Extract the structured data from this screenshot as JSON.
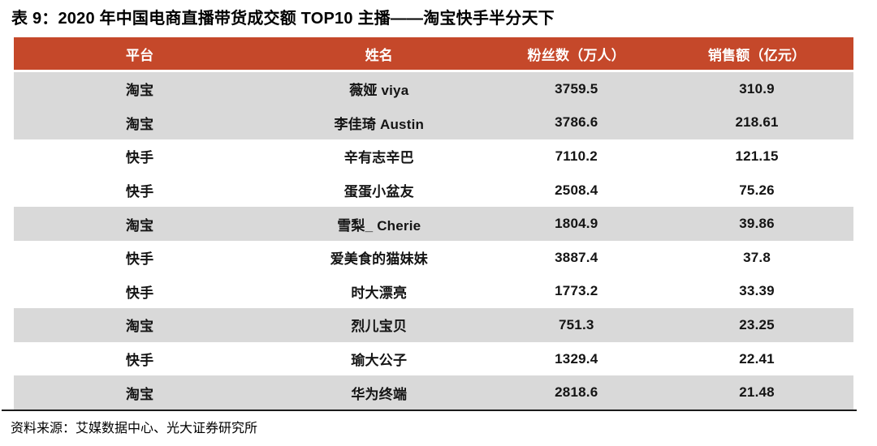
{
  "page": {
    "title": "表 9：2020 年中国电商直播带货成交额 TOP10 主播——淘宝快手半分天下",
    "source": "资料来源：艾媒数据中心、光大证券研究所"
  },
  "colors": {
    "header_bg": "#C5482A",
    "header_text": "#FFFFFF",
    "row_shaded_bg": "#D9D9D9",
    "body_text": "#141414",
    "bottom_rule": "#1B1B1B"
  },
  "table": {
    "headers": [
      "平台",
      "姓名",
      "粉丝数（万人）",
      "销售额（亿元）"
    ],
    "rows": [
      {
        "platform": "淘宝",
        "name": "薇娅 viya",
        "fans": "3759.5",
        "sales": "310.9",
        "shade": "gray"
      },
      {
        "platform": "淘宝",
        "name": "李佳琦 Austin",
        "fans": "3786.6",
        "sales": "218.61",
        "shade": "gray"
      },
      {
        "platform": "快手",
        "name": "辛有志辛巴",
        "fans": "7110.2",
        "sales": "121.15",
        "shade": "white"
      },
      {
        "platform": "快手",
        "name": "蛋蛋小盆友",
        "fans": "2508.4",
        "sales": "75.26",
        "shade": "white"
      },
      {
        "platform": "淘宝",
        "name": "雪梨_ Cherie",
        "fans": "1804.9",
        "sales": "39.86",
        "shade": "gray"
      },
      {
        "platform": "快手",
        "name": "爱美食的猫妹妹",
        "fans": "3887.4",
        "sales": "37.8",
        "shade": "white"
      },
      {
        "platform": "快手",
        "name": "时大漂亮",
        "fans": "1773.2",
        "sales": "33.39",
        "shade": "white"
      },
      {
        "platform": "淘宝",
        "name": "烈儿宝贝",
        "fans": "751.3",
        "sales": "23.25",
        "shade": "gray"
      },
      {
        "platform": "快手",
        "name": "瑜大公子",
        "fans": "1329.4",
        "sales": "22.41",
        "shade": "white"
      },
      {
        "platform": "淘宝",
        "name": "华为终端",
        "fans": "2818.6",
        "sales": "21.48",
        "shade": "gray"
      }
    ]
  },
  "chart_data": {
    "type": "table",
    "title": "表 9：2020 年中国电商直播带货成交额 TOP10 主播——淘宝快手半分天下",
    "columns": [
      "平台",
      "姓名",
      "粉丝数（万人）",
      "销售额（亿元）"
    ],
    "rows": [
      [
        "淘宝",
        "薇娅 viya",
        3759.5,
        310.9
      ],
      [
        "淘宝",
        "李佳琦 Austin",
        3786.6,
        218.61
      ],
      [
        "快手",
        "辛有志辛巴",
        7110.2,
        121.15
      ],
      [
        "快手",
        "蛋蛋小盆友",
        2508.4,
        75.26
      ],
      [
        "淘宝",
        "雪梨_ Cherie",
        1804.9,
        39.86
      ],
      [
        "快手",
        "爱美食的猫妹妹",
        3887.4,
        37.8
      ],
      [
        "快手",
        "时大漂亮",
        1773.2,
        33.39
      ],
      [
        "淘宝",
        "烈儿宝贝",
        751.3,
        23.25
      ],
      [
        "快手",
        "瑜大公子",
        1329.4,
        22.41
      ],
      [
        "淘宝",
        "华为终端",
        2818.6,
        21.48
      ]
    ],
    "source_note": "资料来源：艾媒数据中心、光大证券研究所"
  }
}
